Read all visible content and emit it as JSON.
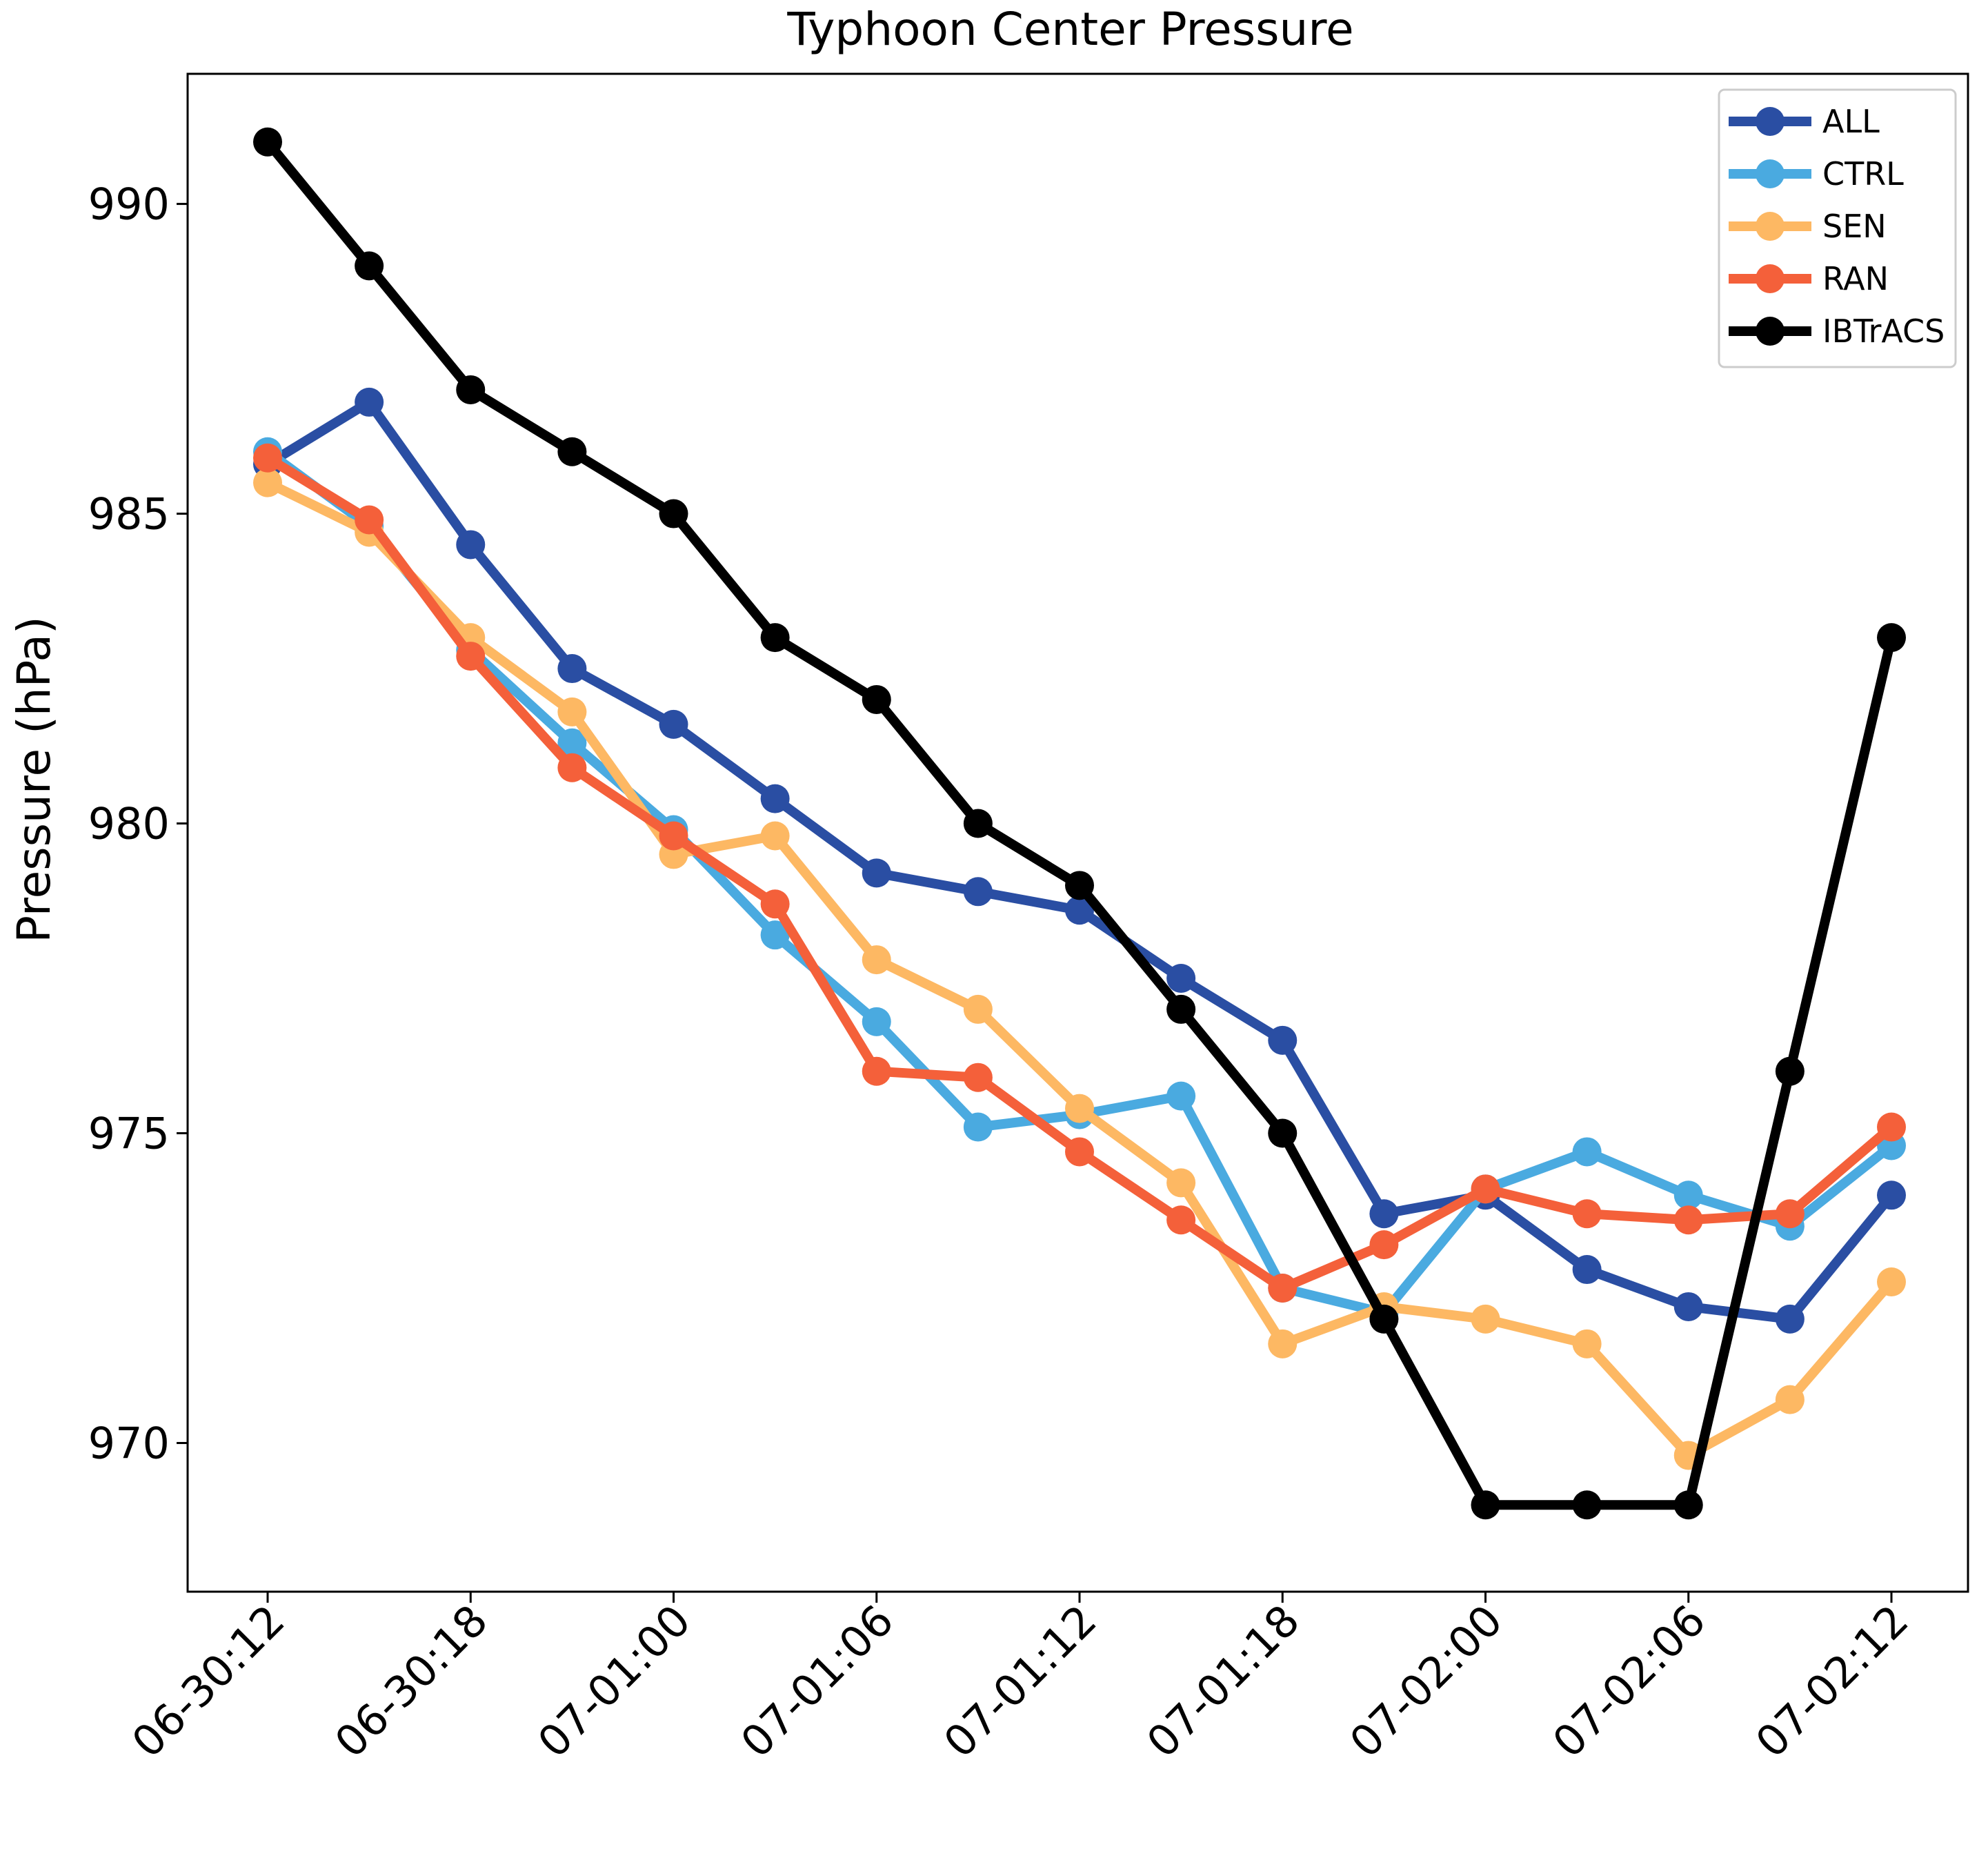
{
  "chart_data": {
    "type": "line",
    "title": "Typhoon Center Pressure",
    "xlabel": "",
    "ylabel": "Pressure (hPa)",
    "ylim": [
      967.6,
      992.1
    ],
    "yticks": [
      970,
      975,
      980,
      985,
      990
    ],
    "x": [
      "06-30:12",
      "06-30:15",
      "06-30:18",
      "06-30:21",
      "07-01:00",
      "07-01:03",
      "07-01:06",
      "07-01:09",
      "07-01:12",
      "07-01:15",
      "07-01:18",
      "07-01:21",
      "07-02:00",
      "07-02:03",
      "07-02:06",
      "07-02:09",
      "07-02:12"
    ],
    "xtick_labels": [
      "06-30:12",
      "06-30:18",
      "07-01:00",
      "07-01:06",
      "07-01:12",
      "07-01:18",
      "07-02:00",
      "07-02:06",
      "07-02:12"
    ],
    "xtick_every": 2,
    "grid": false,
    "legend_position": "top-right",
    "series": [
      {
        "name": "ALL",
        "color": "#2a4ea3",
        "values": [
          985.8,
          986.8,
          984.5,
          982.5,
          981.6,
          980.4,
          979.2,
          978.9,
          978.6,
          977.5,
          976.5,
          973.7,
          974.0,
          972.8,
          972.2,
          972.0,
          974.0
        ]
      },
      {
        "name": "CTRL",
        "color": "#4aaae0",
        "values": [
          986.0,
          984.8,
          982.8,
          981.3,
          979.9,
          978.2,
          976.8,
          975.1,
          975.3,
          975.6,
          972.5,
          972.1,
          974.1,
          974.7,
          974.0,
          973.5,
          974.8
        ]
      },
      {
        "name": "SEN",
        "color": "#fdb863",
        "values": [
          985.5,
          984.7,
          983.0,
          981.8,
          979.5,
          979.8,
          977.8,
          977.0,
          975.4,
          974.2,
          971.6,
          972.2,
          972.0,
          971.6,
          969.8,
          970.7,
          972.6
        ]
      },
      {
        "name": "RAN",
        "color": "#f4603a",
        "values": [
          985.9,
          984.9,
          982.7,
          980.9,
          979.8,
          978.7,
          976.0,
          975.9,
          974.7,
          973.6,
          972.5,
          973.2,
          974.1,
          973.7,
          973.6,
          973.7,
          975.1
        ]
      },
      {
        "name": "IBTrACS",
        "color": "#000000",
        "values": [
          991.0,
          989.0,
          987.0,
          986.0,
          985.0,
          983.0,
          982.0,
          980.0,
          979.0,
          977.0,
          975.0,
          972.0,
          969.0,
          969.0,
          969.0,
          976.0,
          983.0
        ]
      }
    ]
  }
}
